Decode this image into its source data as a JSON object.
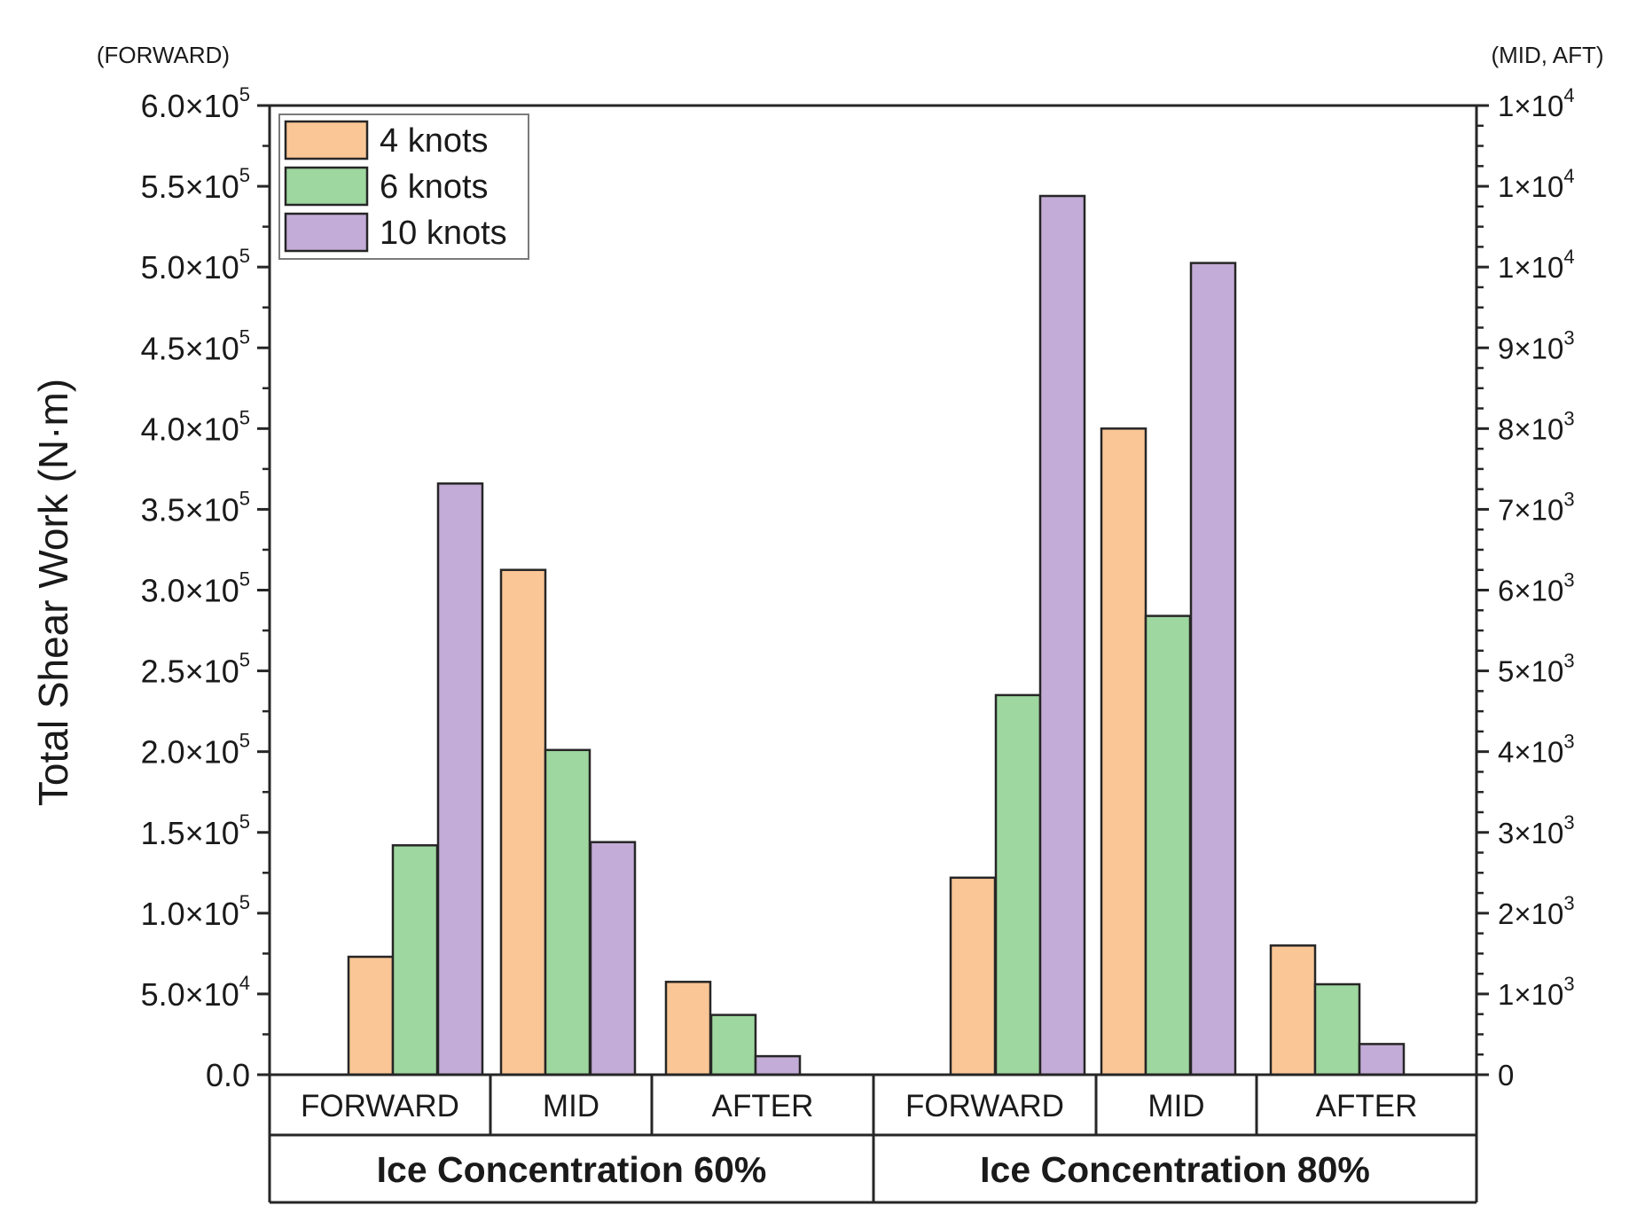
{
  "chart_data": {
    "type": "bar",
    "ylabel": "Total Shear Work (N·m)",
    "left_axis_note": "(FORWARD)",
    "right_axis_note": "(MID, AFT)",
    "left_axis": {
      "ylim": [
        0,
        600000
      ],
      "ticks": [
        {
          "value": 0,
          "text": "0.0"
        },
        {
          "value": 50000,
          "mant": "5.0×10",
          "exp": "4"
        },
        {
          "value": 100000,
          "mant": "1.0×10",
          "exp": "5"
        },
        {
          "value": 150000,
          "mant": "1.5×10",
          "exp": "5"
        },
        {
          "value": 200000,
          "mant": "2.0×10",
          "exp": "5"
        },
        {
          "value": 250000,
          "mant": "2.5×10",
          "exp": "5"
        },
        {
          "value": 300000,
          "mant": "3.0×10",
          "exp": "5"
        },
        {
          "value": 350000,
          "mant": "3.5×10",
          "exp": "5"
        },
        {
          "value": 400000,
          "mant": "4.0×10",
          "exp": "5"
        },
        {
          "value": 450000,
          "mant": "4.5×10",
          "exp": "5"
        },
        {
          "value": 500000,
          "mant": "5.0×10",
          "exp": "5"
        },
        {
          "value": 550000,
          "mant": "5.5×10",
          "exp": "5"
        },
        {
          "value": 600000,
          "mant": "6.0×10",
          "exp": "5"
        }
      ]
    },
    "right_axis": {
      "ylim": [
        0,
        12000
      ],
      "ticks": [
        {
          "value": 0,
          "text": "0"
        },
        {
          "value": 1000,
          "mant": "1×10",
          "exp": "3"
        },
        {
          "value": 2000,
          "mant": "2×10",
          "exp": "3"
        },
        {
          "value": 3000,
          "mant": "3×10",
          "exp": "3"
        },
        {
          "value": 4000,
          "mant": "4×10",
          "exp": "3"
        },
        {
          "value": 5000,
          "mant": "5×10",
          "exp": "3"
        },
        {
          "value": 6000,
          "mant": "6×10",
          "exp": "3"
        },
        {
          "value": 7000,
          "mant": "7×10",
          "exp": "3"
        },
        {
          "value": 8000,
          "mant": "8×10",
          "exp": "3"
        },
        {
          "value": 9000,
          "mant": "9×10",
          "exp": "3"
        },
        {
          "value": 10000,
          "mant": "1×10",
          "exp": "4"
        },
        {
          "value": 11000,
          "mant": "1×10",
          "exp": "4"
        },
        {
          "value": 12000,
          "mant": "1×10",
          "exp": "4"
        }
      ]
    },
    "series": [
      {
        "name": "4 knots",
        "color": "#FAC695"
      },
      {
        "name": "6 knots",
        "color": "#9ED79F"
      },
      {
        "name": "10 knots",
        "color": "#C3ACD7"
      }
    ],
    "groups": [
      {
        "label": "Ice Concentration 60%",
        "categories": [
          {
            "label": "FORWARD",
            "axis": "left",
            "values": [
              73000,
              142000,
              366000
            ]
          },
          {
            "label": "MID",
            "axis": "right",
            "values": [
              6250,
              4020,
              2880
            ]
          },
          {
            "label": "AFTER",
            "axis": "right",
            "values": [
              1150,
              740,
              230
            ]
          }
        ]
      },
      {
        "label": "Ice Concentration 80%",
        "categories": [
          {
            "label": "FORWARD",
            "axis": "left",
            "values": [
              122000,
              235000,
              544000
            ]
          },
          {
            "label": "MID",
            "axis": "right",
            "values": [
              8000,
              5680,
              10050
            ]
          },
          {
            "label": "AFTER",
            "axis": "right",
            "values": [
              1600,
              1120,
              380
            ]
          }
        ]
      }
    ]
  }
}
